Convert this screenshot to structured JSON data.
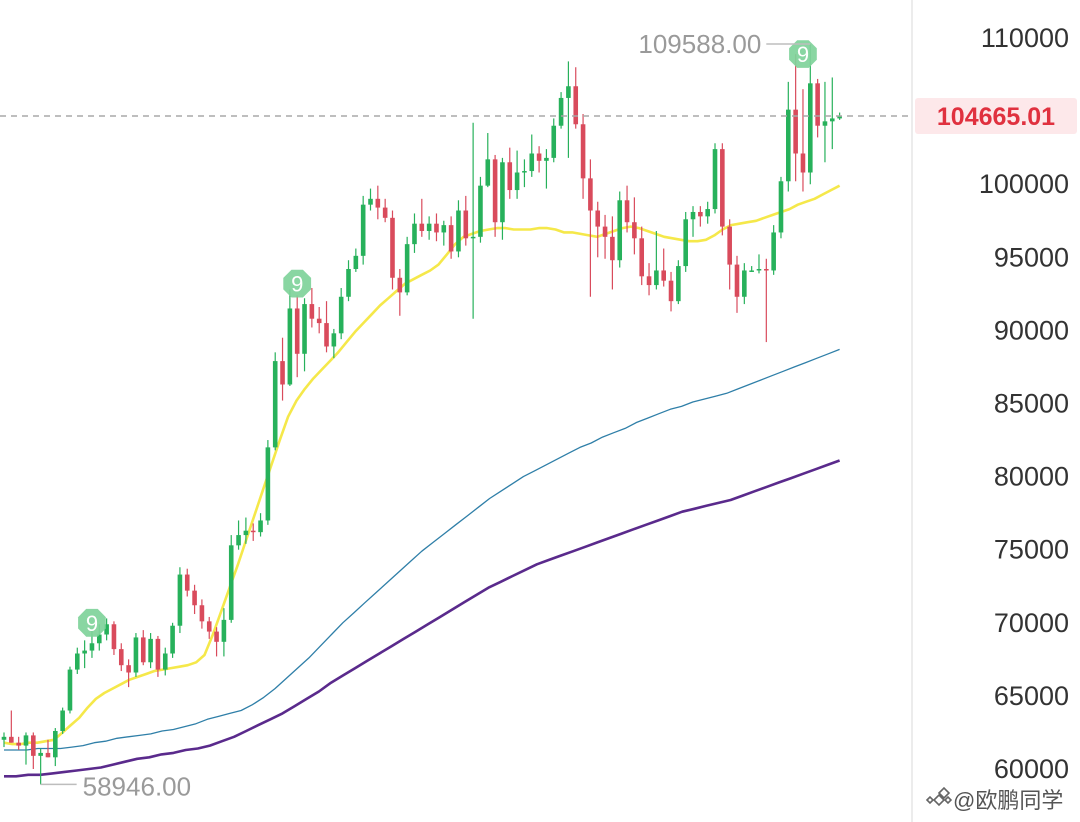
{
  "chart_data": {
    "type": "candlestick",
    "title": "",
    "xlabel": "",
    "ylabel": "",
    "ylim": [
      58500,
      111800
    ],
    "y_ticks": [
      "110000",
      "100000",
      "95000",
      "90000",
      "85000",
      "80000",
      "75000",
      "70000",
      "65000",
      "60000"
    ],
    "current_price": "104665.01",
    "current_price_value": 104665.01,
    "high_label": "109588.00",
    "high_value": 109588,
    "low_label": "58946.00",
    "low_value": 58946,
    "td_marker_label": "9",
    "td_markers": [
      {
        "index": 12,
        "value": 70000
      },
      {
        "index": 40,
        "value": 93200
      },
      {
        "index": 109,
        "value": 108900
      }
    ],
    "candles": [
      [
        62000,
        62500,
        61500,
        62200
      ],
      [
        62200,
        64000,
        61800,
        61800
      ],
      [
        61800,
        62200,
        61300,
        61600
      ],
      [
        61600,
        62500,
        60300,
        62300
      ],
      [
        62300,
        62500,
        60000,
        60900
      ],
      [
        60900,
        61400,
        58946,
        61100
      ],
      [
        61100,
        62000,
        60800,
        60800
      ],
      [
        60800,
        62800,
        60200,
        62600
      ],
      [
        62600,
        64200,
        62400,
        64000
      ],
      [
        64000,
        67000,
        63800,
        66800
      ],
      [
        66800,
        68300,
        66500,
        67900
      ],
      [
        67900,
        68800,
        66900,
        68100
      ],
      [
        68100,
        69500,
        67600,
        68600
      ],
      [
        68600,
        69900,
        68100,
        69200
      ],
      [
        69200,
        70300,
        68800,
        69900
      ],
      [
        69900,
        70100,
        67800,
        68200
      ],
      [
        68200,
        68600,
        66700,
        67100
      ],
      [
        67100,
        67500,
        65600,
        66600
      ],
      [
        66600,
        69300,
        66300,
        69000
      ],
      [
        69000,
        69500,
        67100,
        67300
      ],
      [
        67300,
        69300,
        66900,
        68900
      ],
      [
        68900,
        69100,
        66300,
        66800
      ],
      [
        66800,
        68300,
        66400,
        67900
      ],
      [
        67900,
        70000,
        67600,
        69800
      ],
      [
        69800,
        73800,
        69300,
        73300
      ],
      [
        73300,
        73700,
        71800,
        72200
      ],
      [
        72200,
        72600,
        70600,
        71200
      ],
      [
        71200,
        71600,
        69600,
        70100
      ],
      [
        70100,
        70400,
        68900,
        69400
      ],
      [
        69400,
        69700,
        67700,
        68700
      ],
      [
        68700,
        71000,
        67700,
        70200
      ],
      [
        70200,
        76000,
        70000,
        75300
      ],
      [
        75300,
        77000,
        75000,
        76000
      ],
      [
        76000,
        77200,
        75400,
        76300
      ],
      [
        76300,
        76800,
        75600,
        76200
      ],
      [
        76200,
        77500,
        75900,
        77000
      ],
      [
        77000,
        82500,
        76700,
        82000
      ],
      [
        82000,
        88500,
        81800,
        87900
      ],
      [
        87900,
        89500,
        85200,
        86300
      ],
      [
        86300,
        92800,
        86200,
        91500
      ],
      [
        91500,
        92400,
        86800,
        88400
      ],
      [
        88400,
        92200,
        87200,
        91800
      ],
      [
        91800,
        92900,
        90200,
        90800
      ],
      [
        90800,
        91600,
        89800,
        90500
      ],
      [
        90500,
        92000,
        88500,
        88900
      ],
      [
        88900,
        90100,
        88100,
        89800
      ],
      [
        89800,
        92900,
        89400,
        92300
      ],
      [
        92300,
        94800,
        92000,
        94200
      ],
      [
        94200,
        95600,
        94000,
        95100
      ],
      [
        95100,
        99200,
        94500,
        98600
      ],
      [
        98600,
        99700,
        98200,
        99000
      ],
      [
        99000,
        99900,
        97600,
        98400
      ],
      [
        98400,
        99000,
        97400,
        97700
      ],
      [
        97700,
        98200,
        92800,
        93600
      ],
      [
        93600,
        94200,
        91000,
        92600
      ],
      [
        92600,
        96400,
        92400,
        95900
      ],
      [
        95900,
        98000,
        95300,
        97300
      ],
      [
        97300,
        99000,
        96400,
        96800
      ],
      [
        96800,
        97800,
        96200,
        97300
      ],
      [
        97300,
        98000,
        96100,
        96700
      ],
      [
        96700,
        97500,
        95800,
        97200
      ],
      [
        97200,
        97800,
        94900,
        95400
      ],
      [
        95400,
        98900,
        95000,
        98200
      ],
      [
        98200,
        99200,
        95800,
        96300
      ],
      [
        96300,
        104200,
        90800,
        96400
      ],
      [
        96400,
        100500,
        96000,
        99900
      ],
      [
        99900,
        103500,
        99800,
        101700
      ],
      [
        101700,
        102000,
        96400,
        97400
      ],
      [
        97400,
        101800,
        96200,
        101500
      ],
      [
        101500,
        102500,
        99000,
        99600
      ],
      [
        99600,
        102300,
        99000,
        100800
      ],
      [
        100800,
        101700,
        99800,
        100900
      ],
      [
        100900,
        103400,
        100500,
        102100
      ],
      [
        102100,
        102600,
        100800,
        101600
      ],
      [
        101600,
        102400,
        99700,
        101800
      ],
      [
        101800,
        104500,
        101500,
        104000
      ],
      [
        104000,
        106300,
        103800,
        105900
      ],
      [
        105900,
        108400,
        101800,
        106700
      ],
      [
        106700,
        108000,
        103800,
        104100
      ],
      [
        104100,
        104800,
        99000,
        100400
      ],
      [
        100400,
        101700,
        92300,
        98200
      ],
      [
        98200,
        98800,
        95000,
        97100
      ],
      [
        97100,
        97900,
        94900,
        96400
      ],
      [
        96400,
        97800,
        92800,
        94800
      ],
      [
        94800,
        99500,
        94300,
        98900
      ],
      [
        98900,
        99900,
        96700,
        97400
      ],
      [
        97400,
        99100,
        95200,
        96300
      ],
      [
        96300,
        97100,
        93100,
        93700
      ],
      [
        93700,
        94600,
        92400,
        93100
      ],
      [
        93100,
        96800,
        92800,
        94100
      ],
      [
        94100,
        95600,
        93000,
        93400
      ],
      [
        93400,
        94000,
        91300,
        92000
      ],
      [
        92000,
        94800,
        91800,
        94400
      ],
      [
        94400,
        98100,
        94000,
        97600
      ],
      [
        97600,
        98500,
        96400,
        98100
      ],
      [
        98100,
        98500,
        97100,
        97800
      ],
      [
        97800,
        98800,
        97300,
        98300
      ],
      [
        98300,
        102800,
        98000,
        102400
      ],
      [
        102400,
        102800,
        96500,
        97100
      ],
      [
        97100,
        97600,
        92800,
        94500
      ],
      [
        94500,
        95100,
        91200,
        92300
      ],
      [
        92300,
        94600,
        91800,
        94100
      ],
      [
        94100,
        94400,
        94000,
        94100
      ],
      [
        94100,
        95200,
        93900,
        94200
      ],
      [
        94200,
        94900,
        89200,
        94100
      ],
      [
        94100,
        97200,
        93800,
        96700
      ],
      [
        96700,
        100500,
        96300,
        100200
      ],
      [
        100200,
        107000,
        99500,
        105100
      ],
      [
        105100,
        108900,
        100200,
        102100
      ],
      [
        102100,
        106500,
        99500,
        100800
      ],
      [
        100800,
        109588,
        100000,
        106900
      ],
      [
        106900,
        107200,
        103200,
        104000
      ],
      [
        104000,
        107000,
        101500,
        104300
      ],
      [
        104300,
        107300,
        102400,
        104500
      ],
      [
        104500,
        104900,
        104400,
        104665
      ]
    ],
    "ma_short": [
      61800,
      61700,
      61700,
      61800,
      61800,
      61900,
      62000,
      62500,
      63000,
      63500,
      64200,
      64800,
      65200,
      65500,
      65800,
      66100,
      66300,
      66500,
      66700,
      66800,
      66900,
      67000,
      67100,
      67300,
      67800,
      69200,
      70800,
      72400,
      74000,
      75700,
      77400,
      79100,
      80800,
      82500,
      84100,
      85200,
      86000,
      86700,
      87300,
      87900,
      88500,
      89200,
      89900,
      90500,
      91100,
      91700,
      92200,
      92700,
      93200,
      93500,
      93800,
      94100,
      94500,
      95200,
      95900,
      96400,
      96600,
      96800,
      96900,
      97000,
      97000,
      96900,
      96900,
      96900,
      97000,
      97000,
      96900,
      96700,
      96700,
      96600,
      96500,
      96400,
      96600,
      96800,
      97000,
      97100,
      97000,
      96800,
      96600,
      96400,
      96300,
      96200,
      96100,
      96100,
      96200,
      96500,
      96900,
      97200,
      97300,
      97400,
      97500,
      97700,
      97900,
      98100,
      98300,
      98600,
      98800,
      99000,
      99300,
      99600,
      99900
    ],
    "ma_mid": [
      61300,
      61300,
      61300,
      61400,
      61400,
      61400,
      61500,
      61600,
      61800,
      61900,
      62100,
      62200,
      62300,
      62400,
      62600,
      62700,
      62900,
      63100,
      63400,
      63600,
      63800,
      64000,
      64400,
      64900,
      65500,
      66200,
      66900,
      67600,
      68400,
      69200,
      70000,
      70700,
      71400,
      72100,
      72800,
      73500,
      74200,
      74900,
      75500,
      76100,
      76700,
      77300,
      77900,
      78500,
      79000,
      79500,
      80000,
      80400,
      80800,
      81200,
      81600,
      82000,
      82300,
      82700,
      83000,
      83300,
      83700,
      84000,
      84300,
      84600,
      84800,
      85100,
      85300,
      85500,
      85700,
      86000,
      86300,
      86600,
      86900,
      87200,
      87500,
      87800,
      88100,
      88400,
      88700
    ],
    "ma_long": [
      59500,
      59500,
      59600,
      59600,
      59700,
      59800,
      59900,
      60000,
      60100,
      60300,
      60500,
      60700,
      60800,
      61000,
      61100,
      61300,
      61400,
      61600,
      61900,
      62200,
      62600,
      63000,
      63400,
      63800,
      64300,
      64800,
      65300,
      65900,
      66400,
      66900,
      67400,
      67900,
      68400,
      68900,
      69400,
      69900,
      70400,
      70900,
      71400,
      71900,
      72400,
      72800,
      73200,
      73600,
      74000,
      74300,
      74600,
      74900,
      75200,
      75500,
      75800,
      76100,
      76400,
      76700,
      77000,
      77300,
      77600,
      77800,
      78000,
      78200,
      78400,
      78700,
      79000,
      79300,
      79600,
      79900,
      80200,
      80500,
      80800,
      81100
    ]
  },
  "colors": {
    "up": "#27b15b",
    "down": "#d94b5c",
    "ma_short": "#f5e84a",
    "ma_mid": "#2f7fa8",
    "ma_long": "#5a2a8c",
    "price_line": "#a8a8a8",
    "price_label_bg": "#fde8ea",
    "price_label_text": "#e0313f",
    "axis_text": "#333333",
    "grid": "#e6e6e6",
    "marker": "#7fd39a"
  },
  "watermark": "@欧鹏同学",
  "watermark_icon": "binance-logo-icon"
}
